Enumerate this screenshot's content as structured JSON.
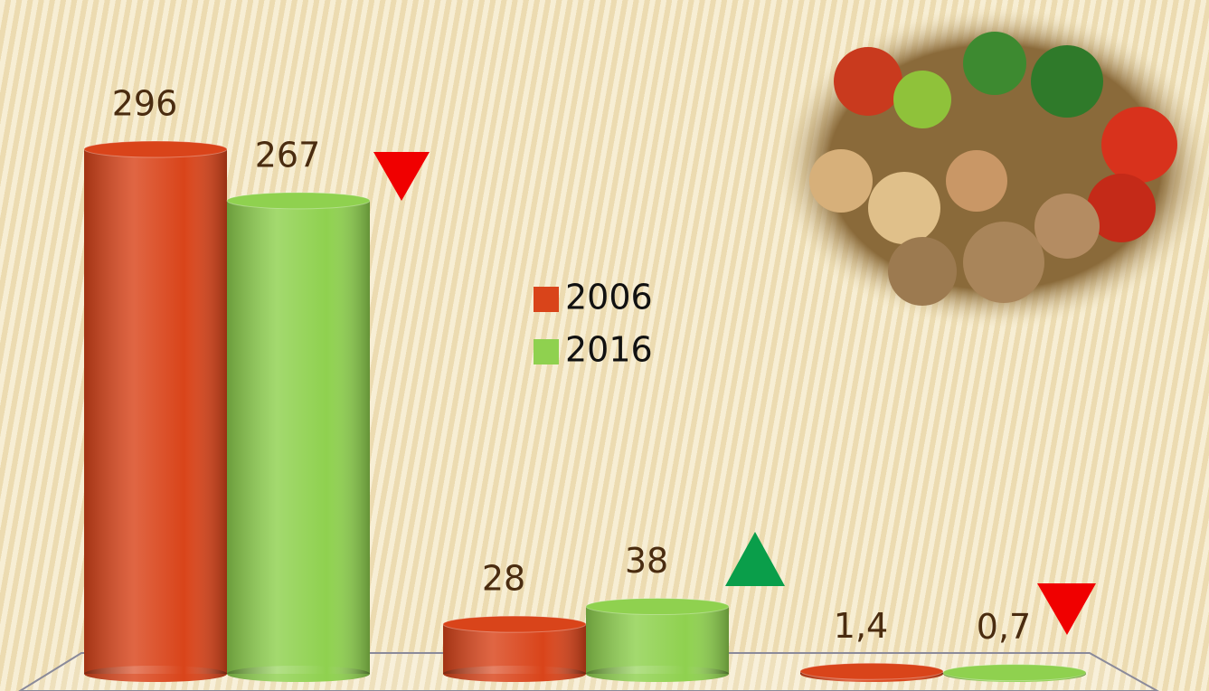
{
  "chart_data": {
    "type": "bar",
    "categories": [
      null,
      null,
      null
    ],
    "series": [
      {
        "name": "2006",
        "color": "#d9441a",
        "values": [
          296,
          28,
          1.4
        ],
        "value_labels": [
          "296",
          "28",
          "1,4"
        ]
      },
      {
        "name": "2016",
        "color": "#8fd14f",
        "values": [
          267,
          38,
          0.7
        ],
        "value_labels": [
          "267",
          "38",
          "0,7"
        ]
      }
    ]
  }
}
